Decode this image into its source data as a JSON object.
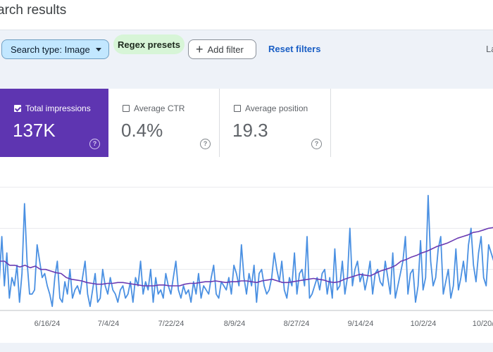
{
  "header": {
    "title": "arch results"
  },
  "filters": {
    "search_type": "Search type: Image",
    "regex_presets": "Regex presets",
    "add_filter": "Add filter",
    "reset_filters": "Reset filters",
    "partial_right": "La"
  },
  "metrics": [
    {
      "label": "Total impressions",
      "value": "137K",
      "checked": true
    },
    {
      "label": "Average CTR",
      "value": "0.4%",
      "checked": false
    },
    {
      "label": "Average position",
      "value": "19.3",
      "checked": false
    }
  ],
  "colors": {
    "impressions": "#4a90e2",
    "trend": "#6a3ab2",
    "accent": "#5e35b1"
  },
  "chart_data": {
    "type": "line",
    "x_ticks": [
      "6/16/24",
      "7/4/24",
      "7/22/24",
      "8/9/24",
      "8/27/24",
      "9/14/24",
      "10/2/24",
      "10/20/"
    ],
    "series": [
      {
        "values": [
          35,
          90,
          30,
          70,
          15,
          40,
          30,
          55,
          10,
          45,
          130,
          60,
          20,
          20,
          25,
          80,
          60,
          40,
          45,
          30,
          20,
          5,
          40,
          60,
          15,
          10,
          35,
          20,
          50,
          15,
          25,
          30,
          20,
          40,
          60,
          20,
          5,
          25,
          45,
          10,
          15,
          50,
          30,
          20,
          40,
          25,
          20,
          10,
          25,
          30,
          15,
          20,
          35,
          10,
          40,
          30,
          60,
          20,
          35,
          25,
          50,
          10,
          40,
          20,
          25,
          15,
          45,
          30,
          20,
          40,
          60,
          25,
          15,
          30,
          20,
          25,
          10,
          35,
          20,
          45,
          15,
          30,
          25,
          20,
          40,
          55,
          20,
          15,
          35,
          30,
          25,
          40,
          20,
          55,
          45,
          30,
          80,
          40,
          20,
          45,
          30,
          55,
          10,
          45,
          50,
          30,
          20,
          25,
          40,
          70,
          50,
          35,
          60,
          25,
          15,
          40,
          30,
          70,
          20,
          45,
          50,
          30,
          90,
          15,
          20,
          30,
          40,
          25,
          45,
          50,
          20,
          40,
          15,
          75,
          25,
          30,
          60,
          20,
          40,
          100,
          30,
          50,
          60,
          35,
          45,
          25,
          40,
          60,
          20,
          45,
          50,
          35,
          30,
          60,
          40,
          20,
          70,
          15,
          30,
          45,
          60,
          90,
          20,
          45,
          50,
          10,
          30,
          85,
          25,
          40,
          140,
          60,
          30,
          40,
          75,
          90,
          20,
          35,
          50,
          15,
          30,
          75,
          25,
          40,
          60,
          35,
          80,
          100,
          55,
          35,
          70,
          90,
          40,
          30,
          80,
          70,
          60
        ]
      },
      {
        "values": [
          60,
          60,
          55,
          55,
          53,
          55,
          52,
          54,
          50,
          50,
          48,
          46,
          45,
          40,
          38,
          37,
          36,
          34,
          33,
          32,
          32,
          33,
          33,
          34,
          34,
          33,
          32,
          31,
          30,
          30,
          30,
          31,
          31,
          30,
          30,
          30,
          32,
          33,
          33,
          34,
          35,
          35,
          36,
          35,
          34,
          35,
          35,
          36,
          36,
          35,
          34,
          36,
          37,
          38,
          36,
          34,
          34,
          35,
          36,
          37,
          38,
          39,
          38,
          37,
          35,
          34,
          35,
          38,
          40,
          42,
          44,
          43,
          42,
          45,
          48,
          50,
          52,
          55,
          60,
          62,
          65,
          67,
          70,
          72,
          75,
          78,
          80,
          82,
          85,
          88,
          90,
          92,
          95,
          96,
          98,
          100,
          101
        ]
      }
    ]
  }
}
